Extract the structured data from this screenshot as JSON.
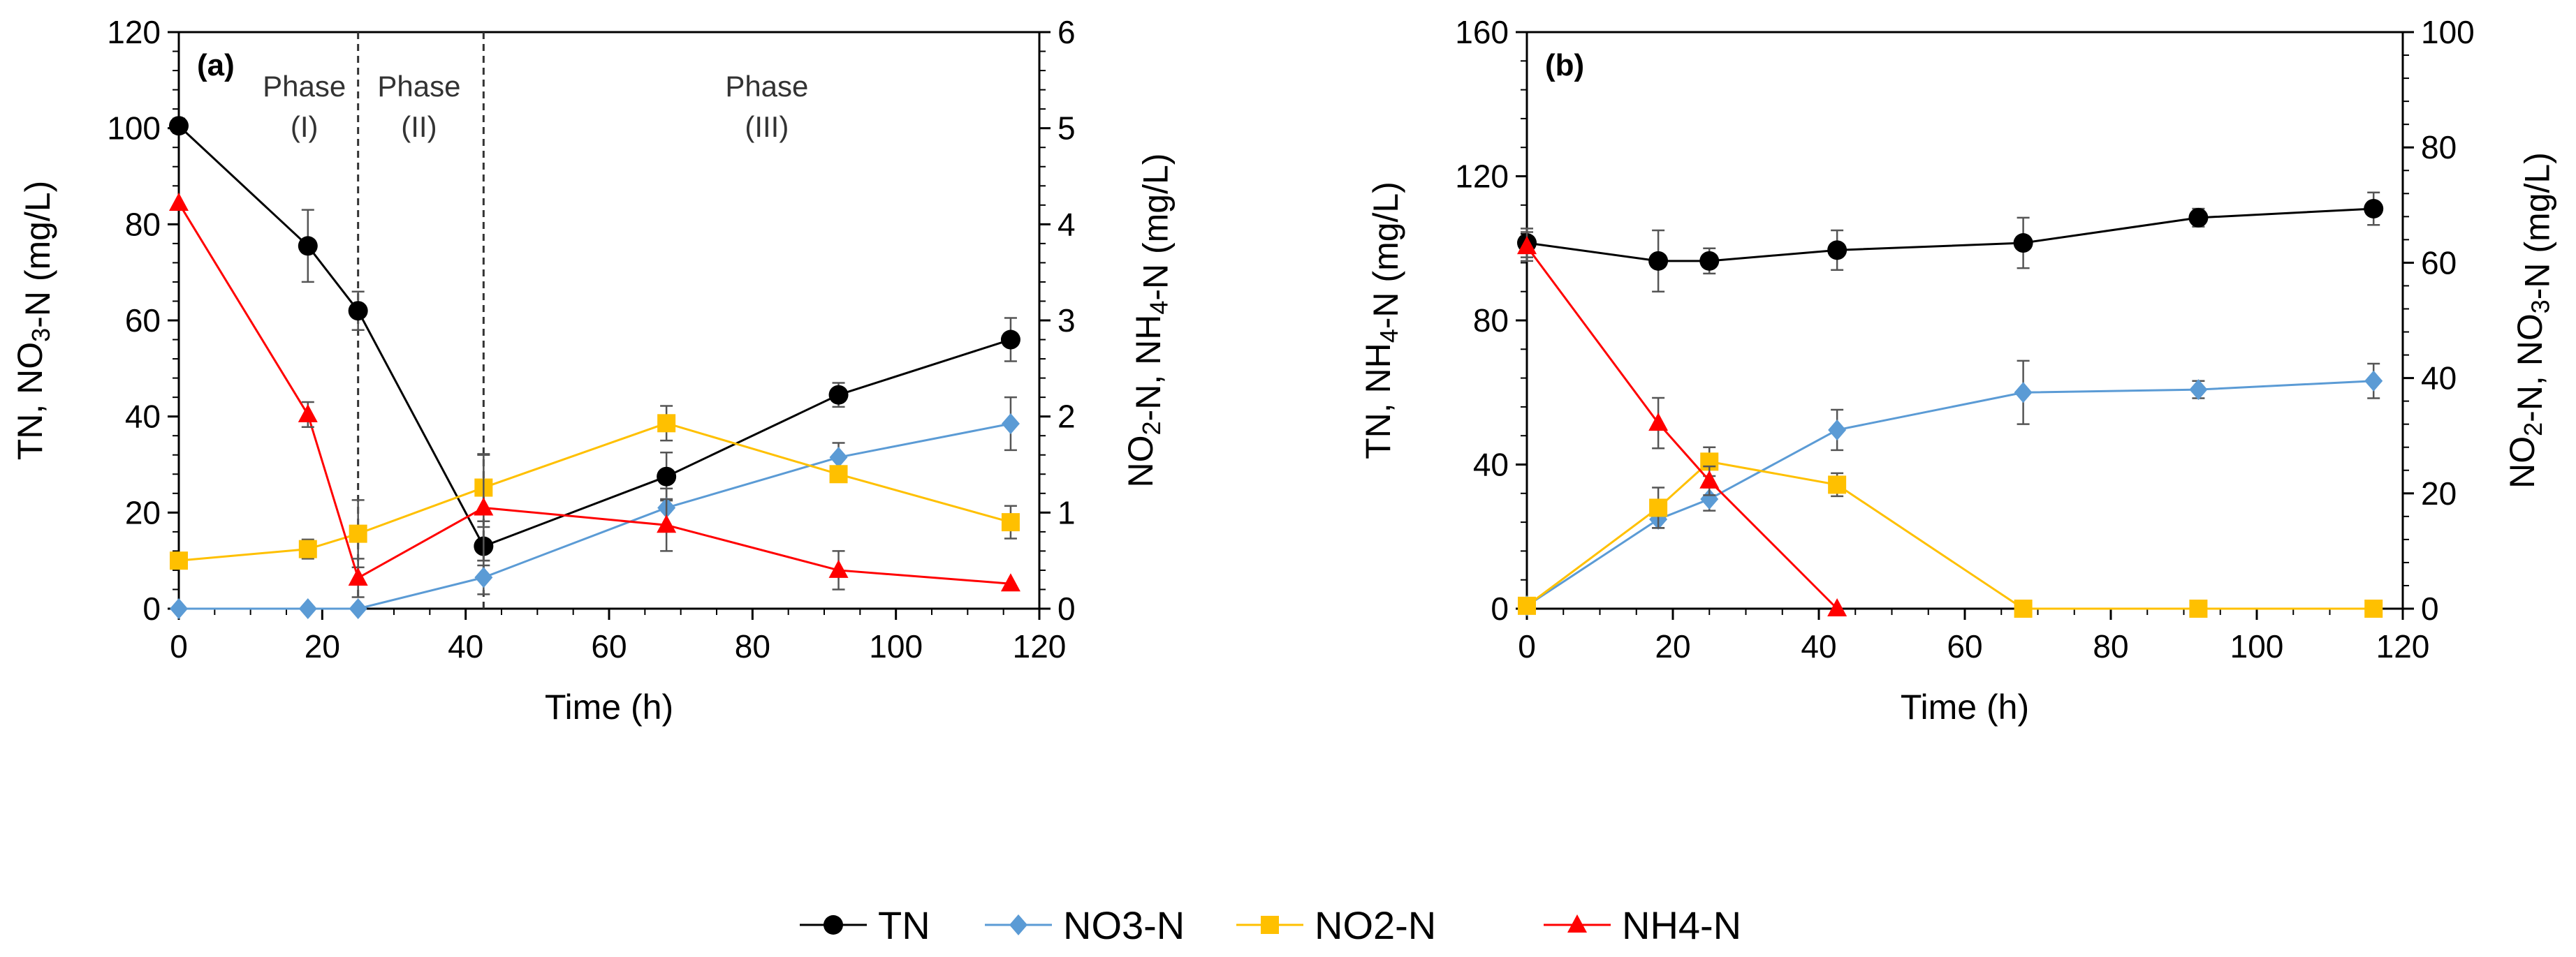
{
  "chart_data": [
    {
      "type": "line",
      "panel_label": "(a)",
      "xlabel": "Time (h)",
      "ylabel_left": "TN, NO3-N (mg/L)",
      "ylabel_right": "NO2-N, NH4-N (mg/L)",
      "xlim": [
        0,
        120
      ],
      "ylim_left": [
        0,
        120
      ],
      "ylim_right": [
        0,
        6
      ],
      "xticks": [
        0,
        20,
        40,
        60,
        80,
        100,
        120
      ],
      "yticks_left": [
        0,
        20,
        40,
        60,
        80,
        100,
        120
      ],
      "yticks_right": [
        0,
        1,
        2,
        3,
        4,
        5,
        6
      ],
      "phase_boundaries": [
        25,
        42.5
      ],
      "phases": [
        {
          "line1": "Phase",
          "line2": "(I)",
          "x": 17.5
        },
        {
          "line1": "Phase",
          "line2": "(II)",
          "x": 33.5
        },
        {
          "line1": "Phase",
          "line2": "(III)",
          "x": 82
        }
      ],
      "series": [
        {
          "name": "TN",
          "axis": "left",
          "color": "#000000",
          "marker": "circle",
          "x": [
            0,
            18,
            25,
            42.5,
            68,
            92,
            116
          ],
          "y": [
            100.5,
            75.5,
            62,
            13,
            27.5,
            44.5,
            56
          ],
          "err": [
            1.5,
            7.5,
            4,
            4,
            5,
            2.5,
            4.5
          ]
        },
        {
          "name": "NO3-N",
          "axis": "left",
          "color": "#5b9bd5",
          "marker": "diamond",
          "x": [
            0,
            18,
            25,
            42.5,
            68,
            92,
            116
          ],
          "y": [
            0,
            0,
            0,
            6.5,
            21,
            31.5,
            38.5
          ],
          "err": [
            0,
            0,
            0,
            3.5,
            4,
            3,
            5.5
          ]
        },
        {
          "name": "NO2-N",
          "axis": "right",
          "color": "#ffc000",
          "marker": "square",
          "x": [
            0,
            18,
            25,
            42.5,
            68,
            92,
            116
          ],
          "y": [
            0.5,
            0.62,
            0.78,
            1.26,
            1.93,
            1.4,
            0.9
          ],
          "err": [
            0,
            0.1,
            0.35,
            0.35,
            0.18,
            0.08,
            0.17
          ]
        },
        {
          "name": "NH4-N",
          "axis": "right",
          "color": "#ff0000",
          "marker": "triangle",
          "x": [
            0,
            18,
            25,
            42.5,
            68,
            92,
            116
          ],
          "y": [
            4.22,
            2.02,
            0.32,
            1.05,
            0.87,
            0.4,
            0.26
          ],
          "err": [
            0,
            0.13,
            0.2,
            0.55,
            0.27,
            0.2,
            0
          ]
        }
      ]
    },
    {
      "type": "line",
      "panel_label": "(b)",
      "xlabel": "Time (h)",
      "ylabel_left": "TN, NH4-N (mg/L)",
      "ylabel_right": "NO2-N, NO3-N (mg/L)",
      "xlim": [
        0,
        120
      ],
      "ylim_left": [
        0,
        160
      ],
      "ylim_right": [
        0,
        100
      ],
      "xticks": [
        0,
        20,
        40,
        60,
        80,
        100,
        120
      ],
      "yticks_left": [
        0,
        40,
        80,
        120,
        160
      ],
      "yticks_right": [
        0,
        20,
        40,
        60,
        80,
        100
      ],
      "series": [
        {
          "name": "TN",
          "axis": "left",
          "color": "#000000",
          "marker": "circle",
          "x": [
            0,
            18,
            25,
            42.5,
            68,
            92,
            116
          ],
          "y": [
            101.5,
            96.5,
            96.5,
            99.5,
            101.5,
            108.5,
            111
          ],
          "err": [
            4,
            8.5,
            3.5,
            5.5,
            7,
            2.5,
            4.5
          ]
        },
        {
          "name": "NO3-N",
          "axis": "right",
          "color": "#5b9bd5",
          "marker": "diamond",
          "x": [
            0,
            18,
            25,
            42.5,
            68,
            92,
            116
          ],
          "y": [
            0.5,
            15.5,
            19,
            31,
            37.5,
            38,
            39.5
          ],
          "err": [
            0,
            1.5,
            2,
            3.5,
            5.5,
            1.5,
            3
          ]
        },
        {
          "name": "NO2-N",
          "axis": "right",
          "color": "#ffc000",
          "marker": "square",
          "x": [
            0,
            18,
            25,
            42.5,
            68,
            92,
            116
          ],
          "y": [
            0.5,
            17.5,
            25.5,
            21.5,
            0,
            0,
            0
          ],
          "err": [
            0,
            3.5,
            2.5,
            2,
            0,
            0,
            0
          ]
        },
        {
          "name": "NH4-N",
          "axis": "left",
          "color": "#ff0000",
          "marker": "triangle",
          "x": [
            0,
            18,
            25,
            42.5
          ],
          "y": [
            100.5,
            51.5,
            35.5,
            0
          ],
          "err": [
            4,
            7,
            4,
            0
          ]
        }
      ]
    }
  ],
  "legend": [
    {
      "label": "TN",
      "color": "#000000",
      "marker": "circle"
    },
    {
      "label": "NO3-N",
      "color": "#5b9bd5",
      "marker": "diamond"
    },
    {
      "label": "NO2-N",
      "color": "#ffc000",
      "marker": "square"
    },
    {
      "label": "NH4-N",
      "color": "#ff0000",
      "marker": "triangle"
    }
  ]
}
